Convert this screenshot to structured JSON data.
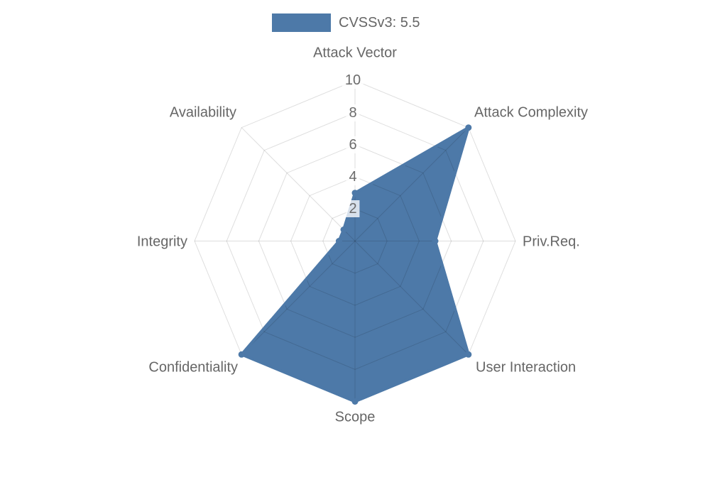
{
  "legend": {
    "label": "CVSSv3: 5.5",
    "position": "top",
    "box_color": "#4d79a8"
  },
  "chart_data": {
    "type": "radar",
    "title": "",
    "categories": [
      "Attack Vector",
      "Attack Complexity",
      "Priv.Req.",
      "User Interaction",
      "Scope",
      "Confidentiality",
      "Integrity",
      "Availability"
    ],
    "series": [
      {
        "name": "CVSSv3: 5.5",
        "values": [
          3,
          10,
          5,
          10,
          10,
          10,
          1,
          1
        ],
        "color": "#4d79a8"
      }
    ],
    "axis": {
      "min": 0,
      "max": 10,
      "tick_step": 2
    },
    "tick_labels": [
      "2",
      "4",
      "6",
      "8",
      "10"
    ],
    "grid": {
      "shape": "polygon-web",
      "rings": 5,
      "spokes": 8
    },
    "legend_position": "top",
    "colors": {
      "series_fill": "#4d79a8",
      "grid_line_alpha": 0.13,
      "label_text": "#666666",
      "tick_text": "#6b6b6b",
      "tick_backdrop": "rgba(255,255,255,0.78)"
    }
  }
}
